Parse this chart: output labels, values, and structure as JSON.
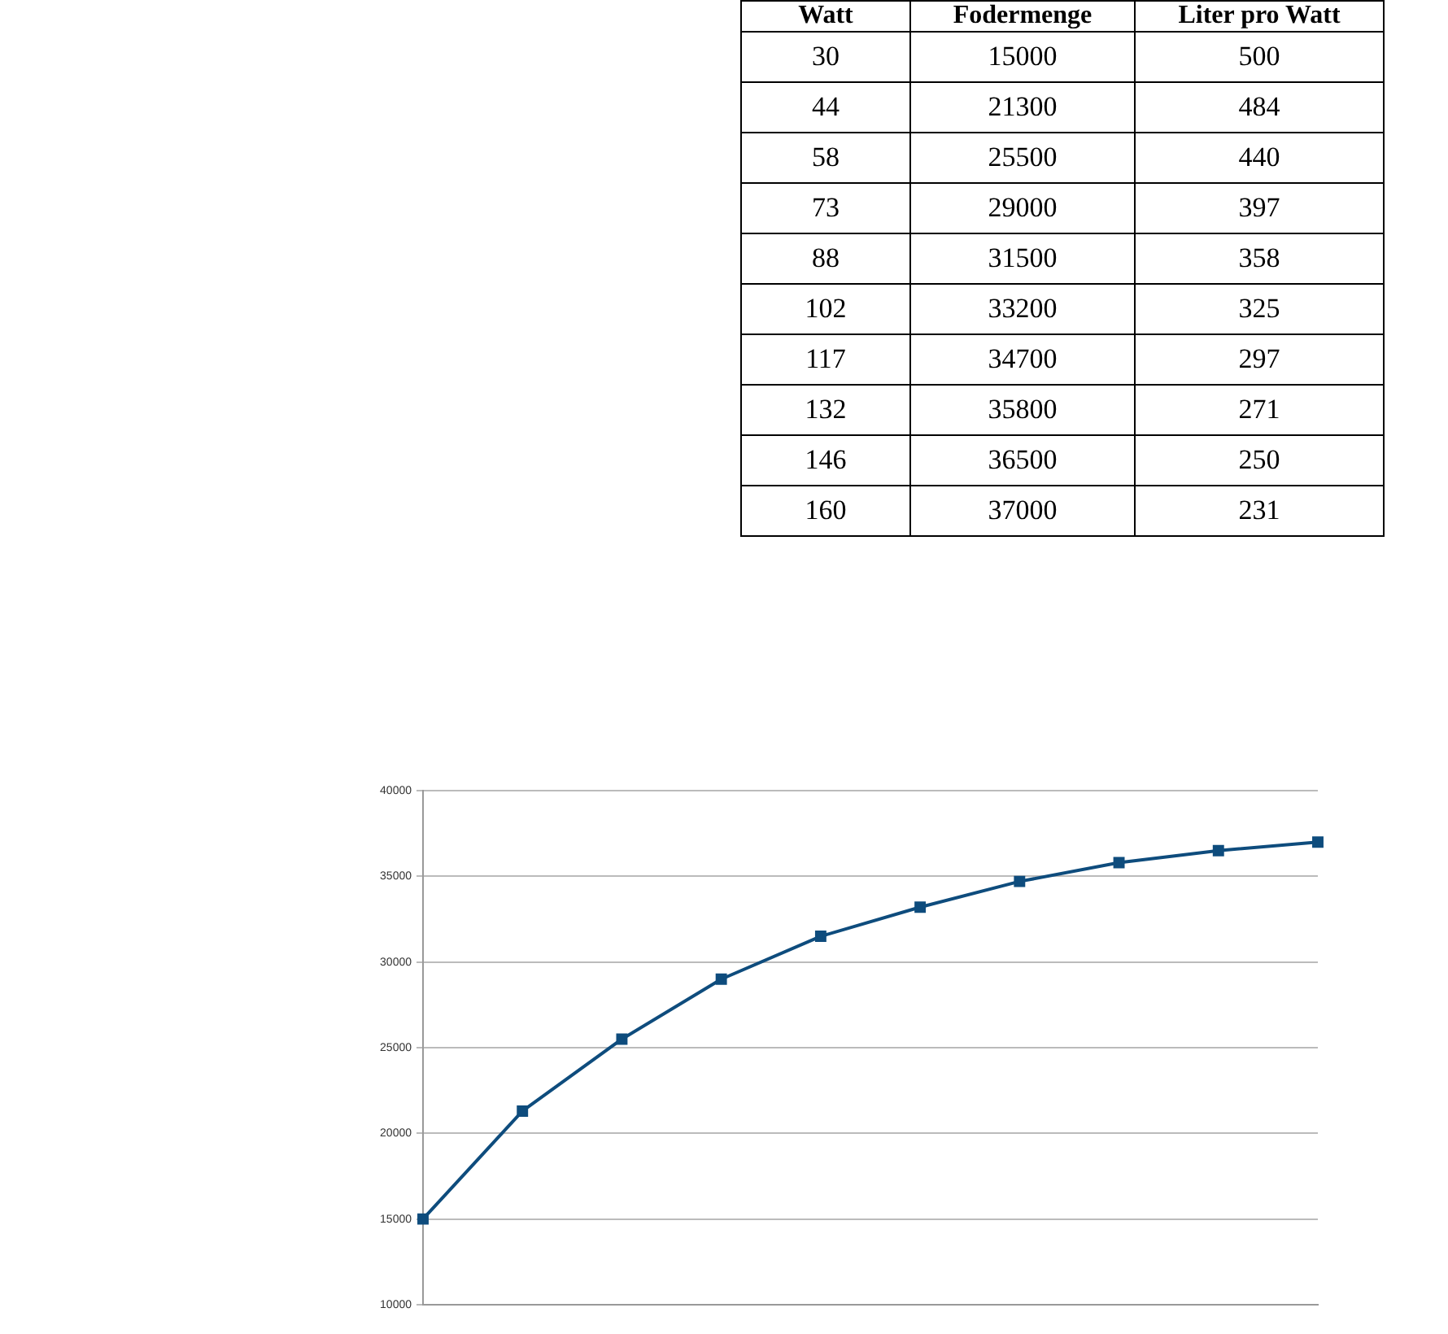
{
  "chart_data": [
    {
      "type": "other",
      "annotations": [
        "Watt",
        "Fodermenge",
        "Liter pro Watt",
        "30",
        "15000",
        "500",
        "44",
        "21300",
        "484",
        "58",
        "25500",
        "440",
        "73",
        "29000",
        "397",
        "88",
        "31500",
        "358",
        "102",
        "33200",
        "325",
        "117",
        "34700",
        "297",
        "132",
        "35800",
        "271",
        "146",
        "36500",
        "250",
        "160",
        "37000",
        "231"
      ]
    },
    {
      "type": "line",
      "categories": [
        null,
        null,
        null,
        null,
        null,
        null,
        null,
        null,
        null,
        null
      ],
      "series": [
        {
          "color": "#0e4c7d",
          "values": [
            15000,
            21300,
            25500,
            29000,
            31500,
            33200,
            34700,
            35800,
            36500,
            37000
          ]
        }
      ],
      "ylim": [
        10000,
        40000
      ],
      "yticks": [
        10000,
        15000,
        20000,
        25000,
        30000,
        35000,
        40000
      ],
      "grid": "y",
      "tick_labels": "y",
      "marker": "square"
    }
  ]
}
